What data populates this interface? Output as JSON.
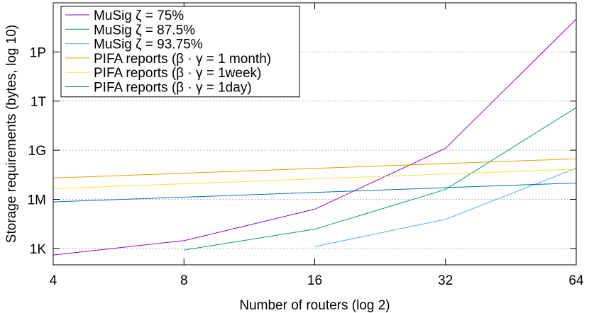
{
  "chart_data": {
    "type": "line",
    "xlabel": "Number of routers (log 2)",
    "ylabel": "Storage requirements (bytes, log 10)",
    "x_scale": "log2",
    "y_scale": "log10",
    "xlim": [
      4,
      64
    ],
    "ylim": [
      100.0,
      1e+18
    ],
    "x_ticks": [
      4,
      8,
      16,
      32,
      64
    ],
    "x_tick_labels": [
      "4",
      "8",
      "16",
      "32",
      "64"
    ],
    "y_ticks": [
      1000.0,
      1000000.0,
      1000000000.0,
      1000000000000.0,
      1000000000000000.0
    ],
    "y_tick_labels": [
      "1K",
      "1M",
      "1G",
      "1T",
      "1P"
    ],
    "grid": "horizontal-dotted",
    "legend_position": "top-left",
    "series": [
      {
        "name": "MuSig ζ = 75%",
        "color": "#9400d3",
        "points": [
          [
            4,
            400
          ],
          [
            8,
            3000
          ],
          [
            16,
            250000.0
          ],
          [
            32,
            1300000000.0
          ],
          [
            64,
            1e+17
          ]
        ]
      },
      {
        "name": "MuSig ζ = 87.5%",
        "color": "#009e73",
        "points": [
          [
            8,
            800
          ],
          [
            16,
            15000.0
          ],
          [
            32,
            4000000.0
          ],
          [
            64,
            400000000000.0
          ]
        ]
      },
      {
        "name": "MuSig ζ = 93.75%",
        "color": "#56b4e9",
        "points": [
          [
            16,
            1300
          ],
          [
            32,
            60000.0
          ],
          [
            64,
            80000000.0
          ]
        ]
      },
      {
        "name": "PIFA reports (β · γ = 1 month)",
        "color": "#e69f00",
        "points": [
          [
            4,
            20000000.0
          ],
          [
            64,
            300000000.0
          ]
        ]
      },
      {
        "name": "PIFA reports (β · γ = 1week)",
        "color": "#f0e442",
        "points": [
          [
            4,
            4500000.0
          ],
          [
            64,
            70000000.0
          ]
        ]
      },
      {
        "name": "PIFA reports (β · γ = 1day)",
        "color": "#0072b2",
        "points": [
          [
            4,
            700000.0
          ],
          [
            64,
            10000000.0
          ]
        ]
      }
    ]
  }
}
